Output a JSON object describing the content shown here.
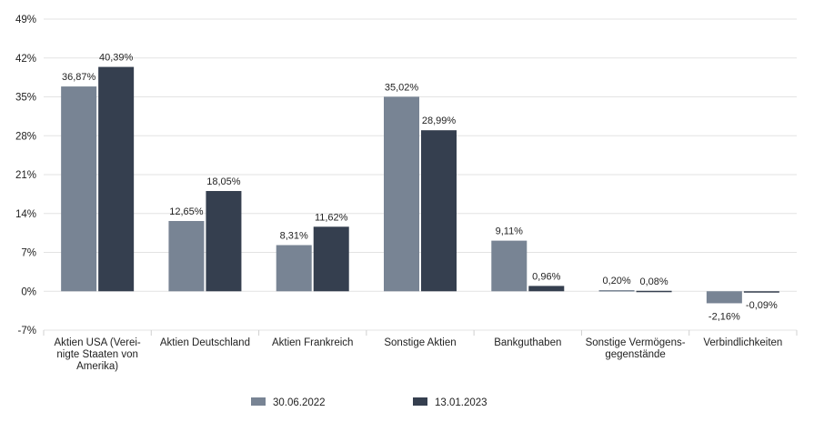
{
  "chart_data": {
    "type": "bar",
    "title": "",
    "xlabel": "",
    "ylabel": "",
    "ylim": [
      -7,
      49
    ],
    "yticks": [
      -7,
      0,
      7,
      14,
      21,
      28,
      35,
      42,
      49
    ],
    "ytick_labels": [
      "-7%",
      "0%",
      "7%",
      "14%",
      "21%",
      "28%",
      "35%",
      "42%",
      "49%"
    ],
    "grid": true,
    "legend_position": "bottom",
    "categories": [
      [
        "Aktien USA (Verei-",
        "nigte Staaten von",
        "Amerika)"
      ],
      [
        "Aktien Deutschland"
      ],
      [
        "Aktien Frankreich"
      ],
      [
        "Sonstige Aktien"
      ],
      [
        "Bankguthaben"
      ],
      [
        "Sonstige Vermögens-",
        "gegenstände"
      ],
      [
        "Verbindlichkeiten"
      ]
    ],
    "series": [
      {
        "name": "30.06.2022",
        "color": "#788494",
        "values": [
          36.87,
          12.65,
          8.31,
          35.02,
          9.11,
          0.2,
          -2.16
        ],
        "labels": [
          "36,87%",
          "12,65%",
          "8,31%",
          "35,02%",
          "9,11%",
          "0,20%",
          "-2,16%"
        ]
      },
      {
        "name": "13.01.2023",
        "color": "#353f4f",
        "values": [
          40.39,
          18.05,
          11.62,
          28.99,
          0.96,
          0.08,
          -0.09
        ],
        "labels": [
          "40,39%",
          "18,05%",
          "11,62%",
          "28,99%",
          "0,96%",
          "0,08%",
          "-0,09%"
        ]
      }
    ]
  }
}
